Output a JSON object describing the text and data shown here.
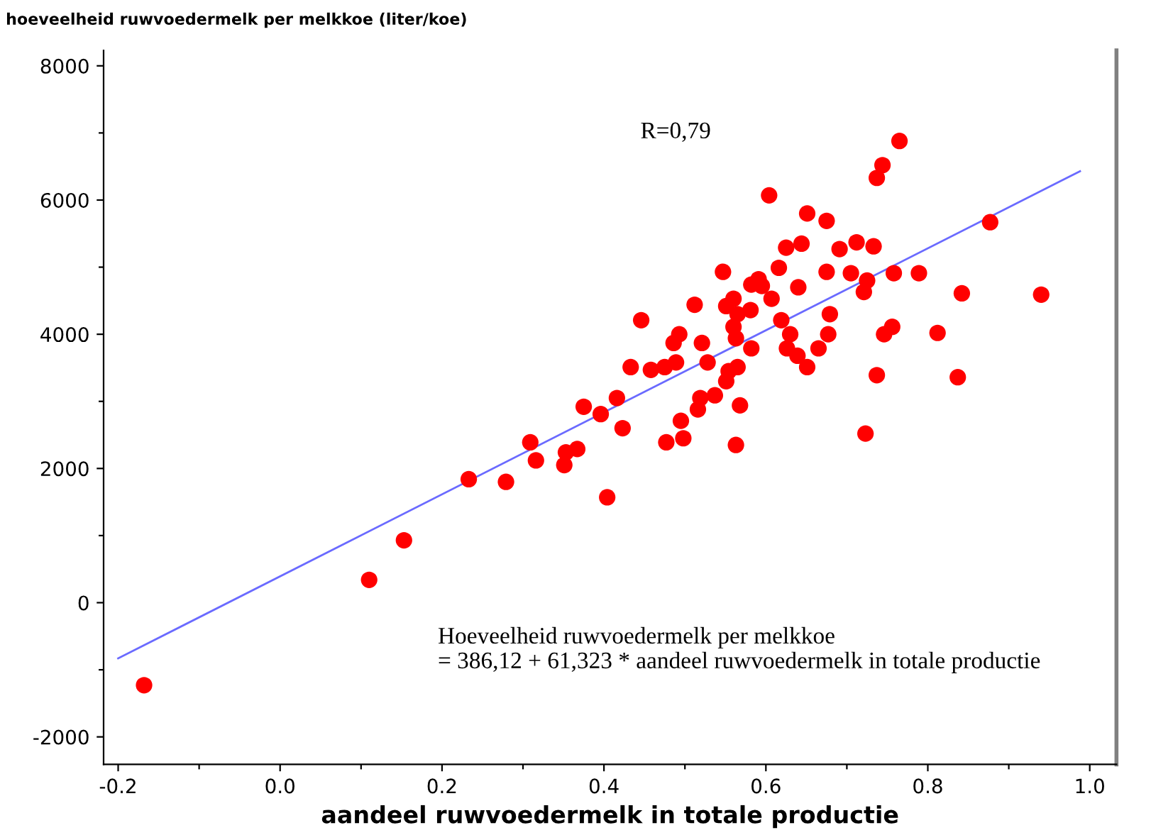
{
  "chart_data": {
    "type": "scatter",
    "ylabel": "hoeveelheid ruwvoedermelk per melkkoe (liter/koe)",
    "xlabel": "aandeel ruwvoedermelk in totale productie",
    "xlim": [
      -0.218,
      1.033
    ],
    "ylim": [
      -2410,
      8230
    ],
    "xticks": [
      -0.2,
      {
        "value": -0.1,
        "label": null
      },
      {
        "value": 0.0,
        "label": "0.0"
      },
      {
        "value": 0.1,
        "label": null
      },
      0.2,
      {
        "value": 0.3,
        "label": null
      },
      0.4,
      {
        "value": 0.5,
        "label": null
      },
      0.6,
      {
        "value": 0.7,
        "label": null
      },
      0.8,
      {
        "value": 0.9,
        "label": null
      },
      {
        "value": 1.0,
        "label": "1.0"
      }
    ],
    "yticks": [
      -2000,
      {
        "value": -1000,
        "label": null
      },
      0,
      {
        "value": 1000,
        "label": null
      },
      2000,
      {
        "value": 3000,
        "label": null
      },
      4000,
      {
        "value": 5000,
        "label": null
      },
      6000,
      {
        "value": 7000,
        "label": null
      },
      8000
    ],
    "grid": false,
    "annotations": [
      "R=0,79",
      "Hoeveelheid ruwvoedermelk per melkkoe\n= 386,12 + 61,323 * aandeel ruwvoedermelk in totale productie"
    ],
    "series": [
      {
        "marker": "circle",
        "color": "#ff0000",
        "x": [
          -0.168,
          0.11,
          0.153,
          0.233,
          0.279,
          0.309,
          0.316,
          0.351,
          0.353,
          0.367,
          0.375,
          0.396,
          0.404,
          0.416,
          0.423,
          0.433,
          0.446,
          0.458,
          0.475,
          0.477,
          0.486,
          0.489,
          0.493,
          0.495,
          0.498,
          0.512,
          0.516,
          0.519,
          0.521,
          0.528,
          0.537,
          0.547,
          0.551,
          0.551,
          0.554,
          0.56,
          0.56,
          0.563,
          0.563,
          0.565,
          0.565,
          0.568,
          0.581,
          0.582,
          0.582,
          0.591,
          0.595,
          0.604,
          0.607,
          0.616,
          0.619,
          0.625,
          0.626,
          0.63,
          0.639,
          0.64,
          0.644,
          0.651,
          0.651,
          0.665,
          0.675,
          0.675,
          0.677,
          0.679,
          0.691,
          0.705,
          0.712,
          0.721,
          0.723,
          0.725,
          0.733,
          0.737,
          0.737,
          0.744,
          0.746,
          0.756,
          0.758,
          0.765,
          0.789,
          0.812,
          0.837,
          0.842,
          0.877,
          0.94
        ],
        "values": [
          -1230,
          340,
          930,
          1840,
          1800,
          2390,
          2120,
          2050,
          2240,
          2290,
          2920,
          2810,
          1570,
          3050,
          2600,
          3510,
          4210,
          3470,
          3510,
          2390,
          3870,
          3580,
          4000,
          2710,
          2450,
          4440,
          2880,
          3050,
          3870,
          3580,
          3090,
          4930,
          4420,
          3300,
          3450,
          4530,
          4110,
          3940,
          2350,
          4300,
          3510,
          2940,
          4360,
          4740,
          3790,
          4820,
          4720,
          6070,
          4530,
          4990,
          4210,
          5290,
          3790,
          4000,
          3680,
          4700,
          5350,
          3510,
          5800,
          3790,
          4930,
          5690,
          4000,
          4300,
          5270,
          4910,
          5370,
          4630,
          2520,
          4800,
          5310,
          6330,
          3390,
          6520,
          4000,
          4110,
          4910,
          6880,
          4910,
          4020,
          3360,
          4610,
          5670,
          4590
        ]
      },
      {
        "type": "line",
        "color": "#6a6aff",
        "x": [
          -0.2,
          0.988
        ],
        "values": [
          -830,
          6430
        ]
      }
    ]
  }
}
